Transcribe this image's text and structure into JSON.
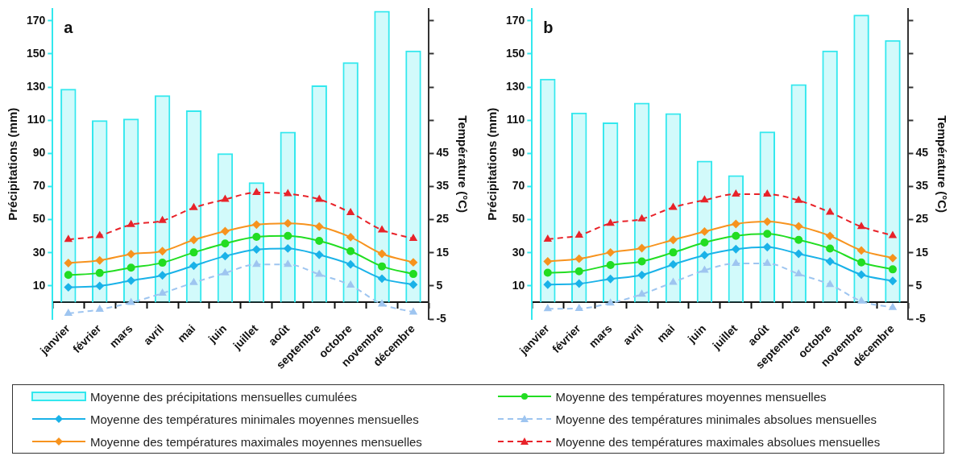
{
  "chart_data": [
    {
      "type": "bar",
      "title": "a",
      "ylabel": "Précipitations (mm)",
      "y2label": "Température (°C)",
      "categories": [
        "janvier",
        "février",
        "mars",
        "avril",
        "mai",
        "juin",
        "juillet",
        "août",
        "septembre",
        "octobre",
        "novembre",
        "décembre"
      ],
      "ylim": [
        -10,
        177
      ],
      "yticks": [
        10,
        30,
        50,
        70,
        90,
        110,
        130,
        150,
        170
      ],
      "y2lim": [
        -5,
        88.5
      ],
      "y2ticks": [
        -5,
        5,
        15,
        25,
        35,
        45,
        {
          "value": 55,
          "label": null
        },
        {
          "value": 65,
          "label": null
        },
        {
          "value": 75,
          "label": null
        },
        {
          "value": 85,
          "label": null
        }
      ],
      "grid": false,
      "legend": "bottom",
      "series": [
        {
          "name": "Moyenne des précipitations mensuelles cumulées",
          "color": "#33e8ee",
          "values": [
            129,
            110,
            111,
            125,
            116,
            90,
            72.5,
            103,
            131,
            145,
            176,
            152
          ]
        },
        {
          "type": "line",
          "axis": "y2",
          "name": "Moyenne des températures minimales moyennes mensuelles",
          "color": "#1ab2e8",
          "marker": "diamond",
          "line_style": "solid",
          "values": [
            4.6,
            5,
            6.6,
            8.2,
            11.1,
            14,
            16,
            16.3,
            14.4,
            11.5,
            7.2,
            5.4
          ]
        },
        {
          "type": "line",
          "axis": "y2",
          "name": "Moyenne des températures maximales moyennes mensuelles",
          "color": "#f7931e",
          "marker": "diamond",
          "line_style": "solid",
          "values": [
            11.9,
            12.7,
            14.6,
            15.5,
            18.9,
            21.5,
            23.5,
            23.9,
            22.9,
            19.7,
            14.7,
            12.1
          ]
        },
        {
          "type": "line",
          "axis": "y2",
          "name": "Moyenne des températures moyennes mensuelles",
          "color": "#22dd22",
          "marker": "circle",
          "line_style": "solid",
          "values": [
            8.3,
            8.9,
            10.5,
            12,
            15.1,
            17.8,
            19.8,
            20.1,
            18.6,
            15.5,
            10.9,
            8.6
          ]
        },
        {
          "type": "line",
          "axis": "y2",
          "name": "Moyenne des températures minimales absolues mensuelles",
          "color": "#9ec5f0",
          "marker": "triangle",
          "line_style": "dashed",
          "values": [
            -3.3,
            -2.1,
            0,
            2.8,
            6,
            8.9,
            11.5,
            11.5,
            8.5,
            5.2,
            -0.5,
            -2.9
          ]
        },
        {
          "type": "line",
          "axis": "y2",
          "name": "Moyenne des températures maximales absolues mensuelles",
          "color": "#e8232a",
          "marker": "triangle",
          "line_style": "dashed",
          "values": [
            19,
            20.2,
            23.5,
            24.7,
            28.6,
            31.1,
            33.2,
            32.8,
            31.1,
            27.1,
            21.9,
            19.3
          ]
        }
      ]
    },
    {
      "type": "bar",
      "title": "b",
      "ylabel": "Précipitations (mm)",
      "y2label": "Température (°C)",
      "categories": [
        "janvier",
        "février",
        "mars",
        "avril",
        "mai",
        "juin",
        "juillet",
        "août",
        "septembre",
        "octobre",
        "novembre",
        "décembre"
      ],
      "ylim": [
        -10,
        177
      ],
      "yticks": [
        10,
        30,
        50,
        70,
        90,
        110,
        130,
        150,
        170
      ],
      "y2lim": [
        -5,
        88.5
      ],
      "y2ticks": [
        -5,
        5,
        15,
        25,
        35,
        45,
        {
          "value": 55,
          "label": null
        },
        {
          "value": 65,
          "label": null
        },
        {
          "value": 75,
          "label": null
        },
        {
          "value": 85,
          "label": null
        }
      ],
      "grid": false,
      "series": [
        {
          "color": "#33e8ee",
          "values": [
            135,
            114.6,
            108.7,
            120.5,
            114.2,
            85.5,
            76.8,
            103.2,
            131.7,
            152,
            173.7,
            158.3
          ]
        },
        {
          "type": "line",
          "axis": "y2",
          "color": "#1ab2e8",
          "marker": "diamond",
          "line_style": "solid",
          "values": [
            5.4,
            5.7,
            7.1,
            8.3,
            11.5,
            14.3,
            16.1,
            16.7,
            14.7,
            12.4,
            8.4,
            6.5
          ]
        },
        {
          "type": "line",
          "axis": "y2",
          "color": "#f7931e",
          "marker": "diamond",
          "line_style": "solid",
          "values": [
            12.4,
            13.2,
            15.1,
            16.4,
            18.9,
            21.4,
            23.7,
            24.4,
            23,
            20.1,
            15.7,
            13.4
          ]
        },
        {
          "type": "line",
          "axis": "y2",
          "color": "#22dd22",
          "marker": "circle",
          "line_style": "solid",
          "values": [
            9,
            9.4,
            11.3,
            12.4,
            15.1,
            18.1,
            20.1,
            20.7,
            18.9,
            16.3,
            12.1,
            10
          ]
        },
        {
          "type": "line",
          "axis": "y2",
          "color": "#9ec5f0",
          "marker": "triangle",
          "line_style": "dashed",
          "values": [
            -1.9,
            -1.8,
            -0.2,
            2.5,
            6.1,
            9.7,
            11.8,
            11.8,
            8.6,
            5.4,
            0.4,
            -1.5
          ]
        },
        {
          "type": "line",
          "axis": "y2",
          "color": "#e8232a",
          "marker": "triangle",
          "line_style": "dashed",
          "values": [
            19.1,
            20.3,
            23.9,
            25.2,
            28.7,
            30.9,
            32.7,
            32.7,
            30.8,
            27.2,
            22.9,
            20.2
          ]
        }
      ]
    }
  ]
}
